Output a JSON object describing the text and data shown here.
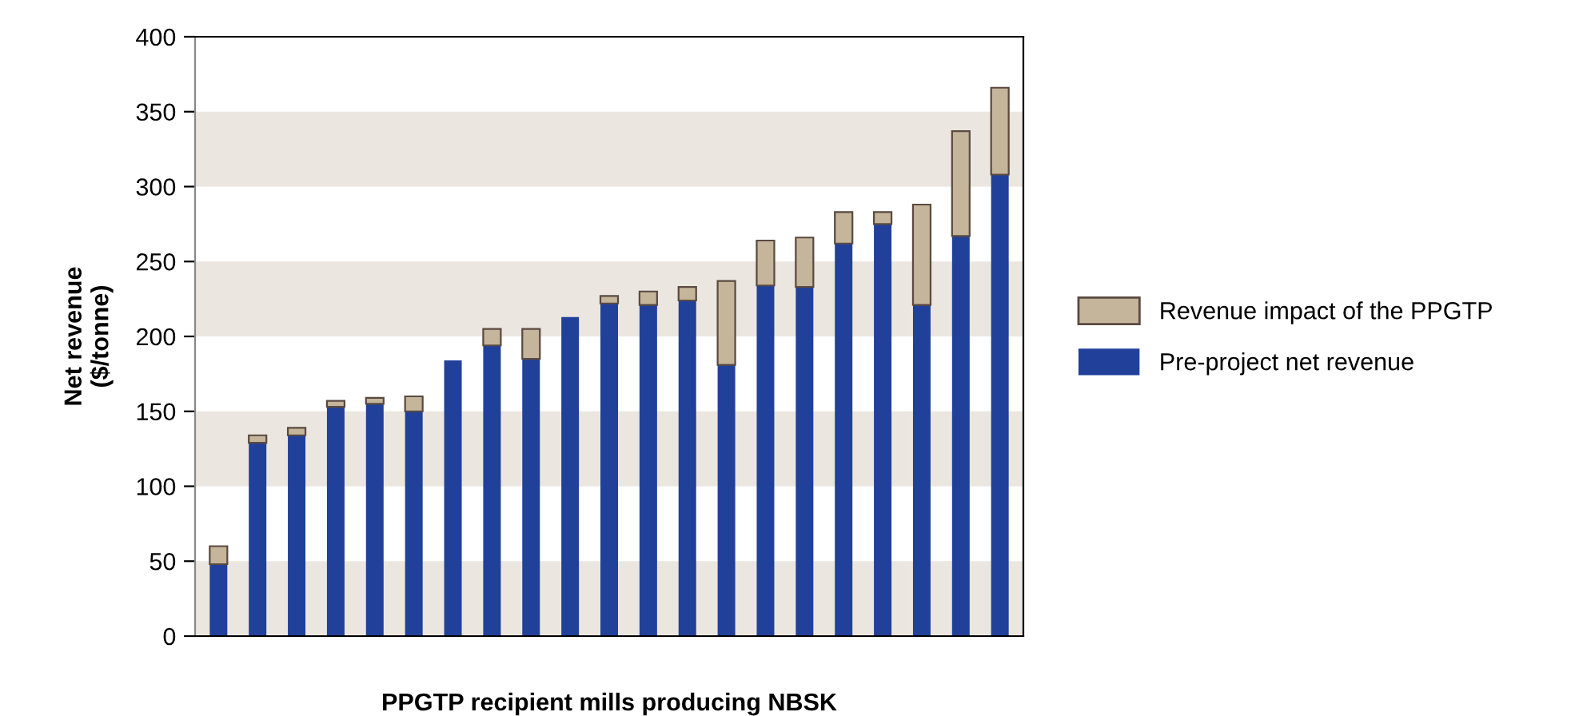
{
  "chart_data": {
    "type": "bar",
    "stacked": true,
    "xlabel": "PPGTP recipient mills producing NBSK",
    "ylabel": "Net revenue\n($/tonne)",
    "categories": [
      null,
      null,
      null,
      null,
      null,
      null,
      null,
      null,
      null,
      null,
      null,
      null,
      null,
      null,
      null,
      null,
      null,
      null,
      null,
      null,
      null
    ],
    "series": [
      {
        "name": "Pre-project net revenue",
        "color": "#21409a",
        "values": [
          48,
          129,
          134,
          153,
          155,
          150,
          184,
          194,
          185,
          213,
          222,
          221,
          224,
          181,
          234,
          233,
          262,
          275,
          221,
          267,
          308
        ]
      },
      {
        "name": "Revenue impact of the PPGTP",
        "color": "#c4b59b",
        "values": [
          12,
          5,
          5,
          4,
          4,
          10,
          null,
          11,
          20,
          null,
          5,
          9,
          9,
          56,
          30,
          33,
          21,
          8,
          67,
          70,
          58
        ]
      }
    ],
    "ylim": [
      0,
      400
    ],
    "yticks": [
      0,
      50,
      100,
      150,
      200,
      250,
      300,
      350,
      400
    ],
    "bands": [
      {
        "axis": "y",
        "from": 0,
        "to": 50,
        "color": "#ebe6e0"
      },
      {
        "axis": "y",
        "from": 100,
        "to": 150,
        "color": "#ebe6e0"
      },
      {
        "axis": "y",
        "from": 200,
        "to": 250,
        "color": "#ebe6e0"
      },
      {
        "axis": "y",
        "from": 300,
        "to": 350,
        "color": "#ebe6e0"
      }
    ],
    "legend": "right",
    "grid": false
  }
}
